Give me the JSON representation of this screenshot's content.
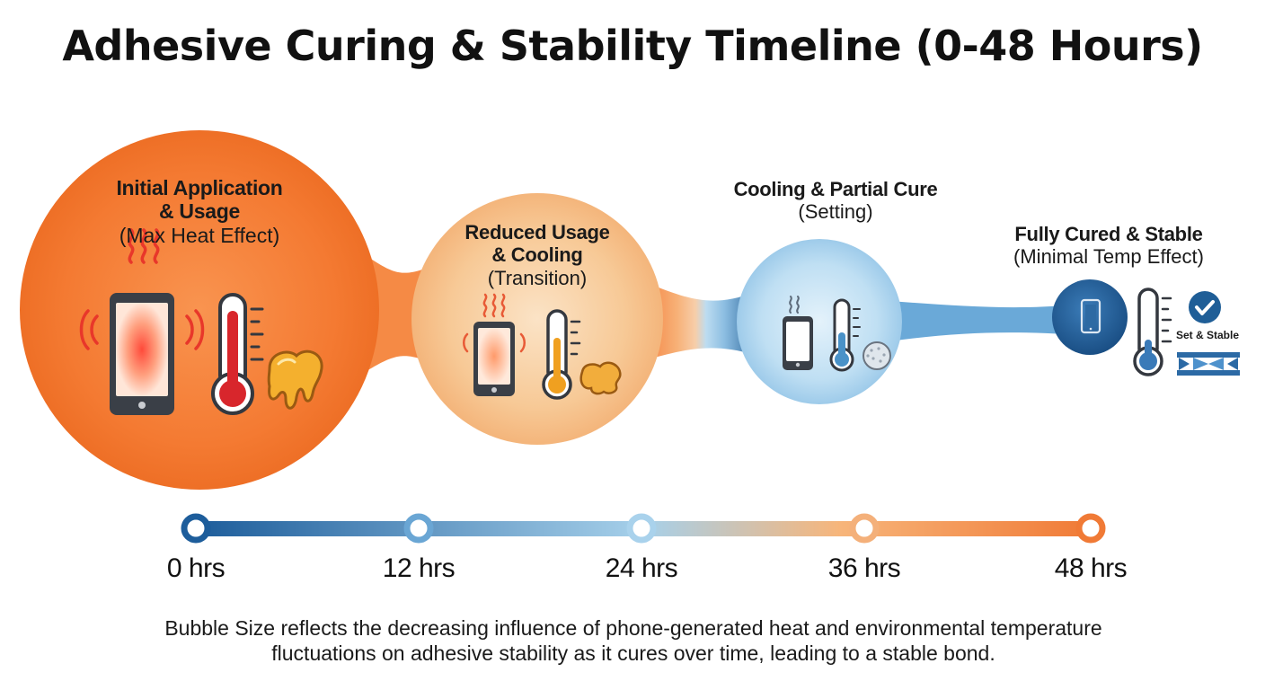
{
  "title": "Adhesive Curing & Stability Timeline (0-48 Hours)",
  "stages": [
    {
      "heading": "Initial Application & Usage",
      "heading_lines": [
        "Initial Application",
        "& Usage"
      ],
      "note": "(Max Heat Effect)"
    },
    {
      "heading": "Reduced Usage & Cooling",
      "heading_lines": [
        "Reduced Usage",
        "& Cooling"
      ],
      "note": "(Transition)"
    },
    {
      "heading": "Cooling & Partial Cure",
      "heading_lines": [
        "Cooling & Partial Cure"
      ],
      "note": "(Setting)"
    },
    {
      "heading": "Fully Cured & Stable",
      "heading_lines": [
        "Fully Cured & Stable"
      ],
      "note": "(Minimal Temp Effect)",
      "badge": "Set & Stable"
    }
  ],
  "timeline": {
    "ticks": [
      "0 hrs",
      "12 hrs",
      "24 hrs",
      "36 hrs",
      "48 hrs"
    ],
    "gradient_colors": [
      "#1d5d9b",
      "#8ec3e6",
      "#f7b57a",
      "#f07a36"
    ]
  },
  "caption_lines": [
    "Bubble Size reflects the decreasing influence of phone-generated heat and environmental temperature",
    "fluctuations on adhesive stability as it cures over time, leading to a stable bond."
  ],
  "colors": {
    "hot": "#f47a32",
    "warm": "#f6c38f",
    "cool": "#b9dcf2",
    "cold": "#1f5e97",
    "mercury_hot": "#d8262c",
    "mercury_warm": "#f0a020",
    "mercury_cool": "#4a92c8",
    "mercury_cold": "#3a7ab8"
  },
  "icons": [
    "phone-icon",
    "thermometer-icon",
    "heat-waves-icon",
    "melted-adhesive-icon",
    "set-adhesive-ball-icon",
    "check-badge-icon",
    "bonded-joint-icon"
  ]
}
